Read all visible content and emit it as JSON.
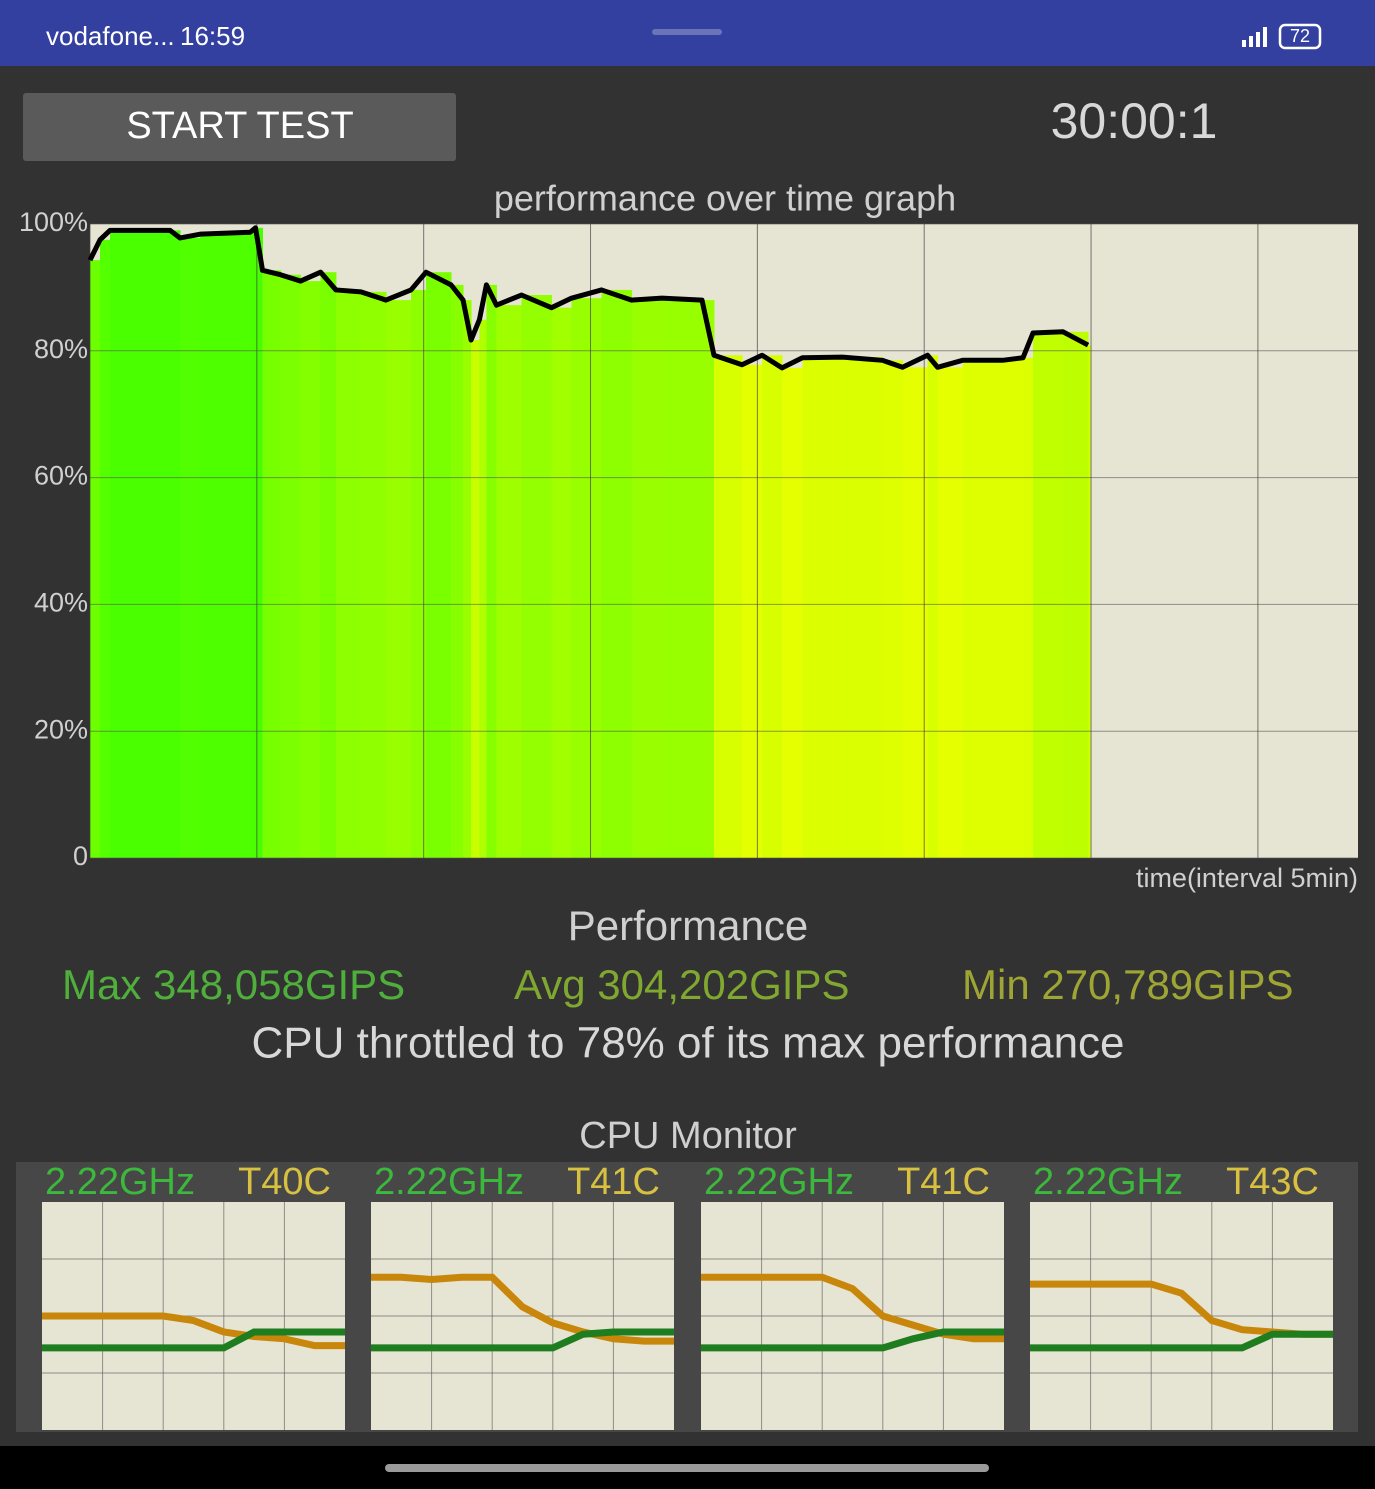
{
  "status_bar": {
    "carrier": "vodafone...",
    "time": "16:59",
    "battery": "72"
  },
  "start_button": "START TEST",
  "timer": "30:00:1",
  "performance_graph": {
    "type": "line",
    "title": "performance over time graph",
    "x_label": "time(interval 5min)",
    "x": [
      0,
      0.3,
      0.6,
      2.4,
      2.7,
      3.3,
      4.8,
      4.96,
      5.17,
      5.71,
      6.31,
      6.91,
      7.37,
      8.12,
      8.87,
      9.62,
      10.07,
      10.82,
      11.18,
      11.42,
      11.67,
      11.88,
      12.18,
      12.93,
      13.83,
      14.43,
      15.33,
      16.23,
      17.14,
      18.34,
      18.7,
      19.54,
      20.14,
      20.74,
      21.35,
      22.55,
      23.75,
      24.35,
      25.1,
      25.4,
      26.15,
      27.35,
      27.96,
      28.26,
      29.16,
      29.91
    ],
    "values": [
      94.3,
      97.5,
      99,
      99,
      97.8,
      98.4,
      98.7,
      99.4,
      92.7,
      92,
      91,
      92.4,
      89.6,
      89.3,
      88,
      89.6,
      92.4,
      90.4,
      88,
      81.7,
      84.9,
      90.4,
      87.2,
      88.8,
      86.8,
      88.3,
      89.6,
      88,
      88.3,
      88,
      79.3,
      77.8,
      79.3,
      77.3,
      78.9,
      79,
      78.5,
      77.4,
      79.3,
      77.4,
      78.5,
      78.5,
      78.9,
      82.8,
      83,
      80.9
    ],
    "color": "#000000",
    "xlim": [
      0,
      38
    ],
    "xticks": [
      0,
      5,
      10,
      15,
      20,
      25,
      30,
      35
    ],
    "ylim": [
      0,
      100
    ],
    "yticks": [
      {
        "value": 0,
        "label": "0"
      },
      {
        "value": 20,
        "label": "20%"
      },
      {
        "value": 40,
        "label": "40%"
      },
      {
        "value": 60,
        "label": "60%"
      },
      {
        "value": 80,
        "label": "80%"
      },
      {
        "value": 100,
        "label": "100%"
      }
    ],
    "grid": true
  },
  "performance": {
    "title": "Performance",
    "max": "Max 348,058GIPS",
    "avg": "Avg 304,202GIPS",
    "min": "Min 270,789GIPS",
    "summary": "CPU throttled to 78% of its max performance"
  },
  "cpu_monitor": {
    "title": "CPU Monitor",
    "cores": [
      {
        "frequency": "2.22GHz",
        "temperature": "T40C",
        "type": "line",
        "x": [
          0,
          1,
          2,
          3,
          4,
          5,
          6,
          7,
          8,
          9,
          10
        ],
        "xlim": [
          0,
          10
        ],
        "ylim": [
          0,
          100
        ],
        "series": [
          {
            "color": "#c8860a",
            "values": [
              50,
              50,
              50,
              50,
              50,
              48,
              43,
              41,
              40,
              37,
              37
            ]
          },
          {
            "color": "#1e7d1e",
            "values": [
              36,
              36,
              36,
              36,
              36,
              36,
              36,
              43,
              43,
              43,
              43
            ]
          }
        ]
      },
      {
        "frequency": "2.22GHz",
        "temperature": "T41C",
        "type": "line",
        "x": [
          0,
          1,
          2,
          3,
          4,
          5,
          6,
          7,
          8,
          9,
          10
        ],
        "xlim": [
          0,
          10
        ],
        "ylim": [
          0,
          100
        ],
        "series": [
          {
            "color": "#c8860a",
            "values": [
              67,
              67,
              66,
              67,
              67,
              54,
              47,
              43,
              40,
              39,
              39
            ]
          },
          {
            "color": "#1e7d1e",
            "values": [
              36,
              36,
              36,
              36,
              36,
              36,
              36,
              42,
              43,
              43,
              43
            ]
          }
        ]
      },
      {
        "frequency": "2.22GHz",
        "temperature": "T41C",
        "type": "line",
        "x": [
          0,
          1,
          2,
          3,
          4,
          5,
          6,
          7,
          8,
          9,
          10
        ],
        "xlim": [
          0,
          10
        ],
        "ylim": [
          0,
          100
        ],
        "series": [
          {
            "color": "#c8860a",
            "values": [
              67,
              67,
              67,
              67,
              67,
              62,
              50,
              46,
              42,
              40,
              40
            ]
          },
          {
            "color": "#1e7d1e",
            "values": [
              36,
              36,
              36,
              36,
              36,
              36,
              36,
              40,
              43,
              43,
              43
            ]
          }
        ]
      },
      {
        "frequency": "2.22GHz",
        "temperature": "T43C",
        "type": "line",
        "x": [
          0,
          1,
          2,
          3,
          4,
          5,
          6,
          7,
          8,
          9,
          10
        ],
        "xlim": [
          0,
          10
        ],
        "ylim": [
          0,
          100
        ],
        "series": [
          {
            "color": "#c8860a",
            "values": [
              64,
              64,
              64,
              64,
              64,
              60,
              48,
              44,
              43,
              42,
              42
            ]
          },
          {
            "color": "#1e7d1e",
            "values": [
              36,
              36,
              36,
              36,
              36,
              36,
              36,
              36,
              42,
              42,
              42
            ]
          }
        ]
      }
    ]
  }
}
